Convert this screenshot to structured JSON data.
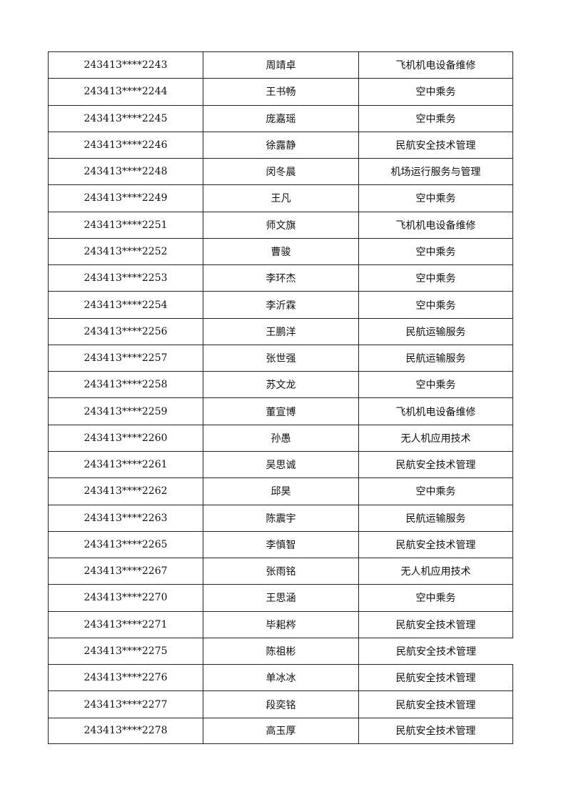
{
  "table": {
    "rows": [
      [
        "243413****2243",
        "周靖卓",
        "飞机机电设备维修"
      ],
      [
        "243413****2244",
        "王书畅",
        "空中乘务"
      ],
      [
        "243413****2245",
        "庞嘉瑶",
        "空中乘务"
      ],
      [
        "243413****2246",
        "徐露静",
        "民航安全技术管理"
      ],
      [
        "243413****2248",
        "闵冬晨",
        "机场运行服务与管理"
      ],
      [
        "243413****2249",
        "王凡",
        "空中乘务"
      ],
      [
        "243413****2251",
        "师文旗",
        "飞机机电设备维修"
      ],
      [
        "243413****2252",
        "曹骏",
        "空中乘务"
      ],
      [
        "243413****2253",
        "李环杰",
        "空中乘务"
      ],
      [
        "243413****2254",
        "李沂霖",
        "空中乘务"
      ],
      [
        "243413****2256",
        "王鹏洋",
        "民航运输服务"
      ],
      [
        "243413****2257",
        "张世强",
        "民航运输服务"
      ],
      [
        "243413****2258",
        "苏文龙",
        "空中乘务"
      ],
      [
        "243413****2259",
        "董宣博",
        "飞机机电设备维修"
      ],
      [
        "243413****2260",
        "孙愚",
        "无人机应用技术"
      ],
      [
        "243413****2261",
        "吴思诚",
        "民航安全技术管理"
      ],
      [
        "243413****2262",
        "邱昊",
        "空中乘务"
      ],
      [
        "243413****2263",
        "陈震宇",
        "民航运输服务"
      ],
      [
        "243413****2265",
        "李慎智",
        "民航安全技术管理"
      ],
      [
        "243413****2267",
        "张雨铭",
        "无人机应用技术"
      ],
      [
        "243413****2270",
        "王思涵",
        "空中乘务"
      ],
      [
        "243413****2271",
        "毕耜梣",
        "民航安全技术管理"
      ],
      [
        "243413****2275",
        "陈祖彬",
        "民航安全技术管理"
      ],
      [
        "243413****2276",
        "单冰冰",
        "民航安全技术管理"
      ],
      [
        "243413****2277",
        "段奕铭",
        "民航安全技术管理"
      ],
      [
        "243413****2278",
        "高玉厚",
        "民航安全技术管理"
      ]
    ]
  }
}
